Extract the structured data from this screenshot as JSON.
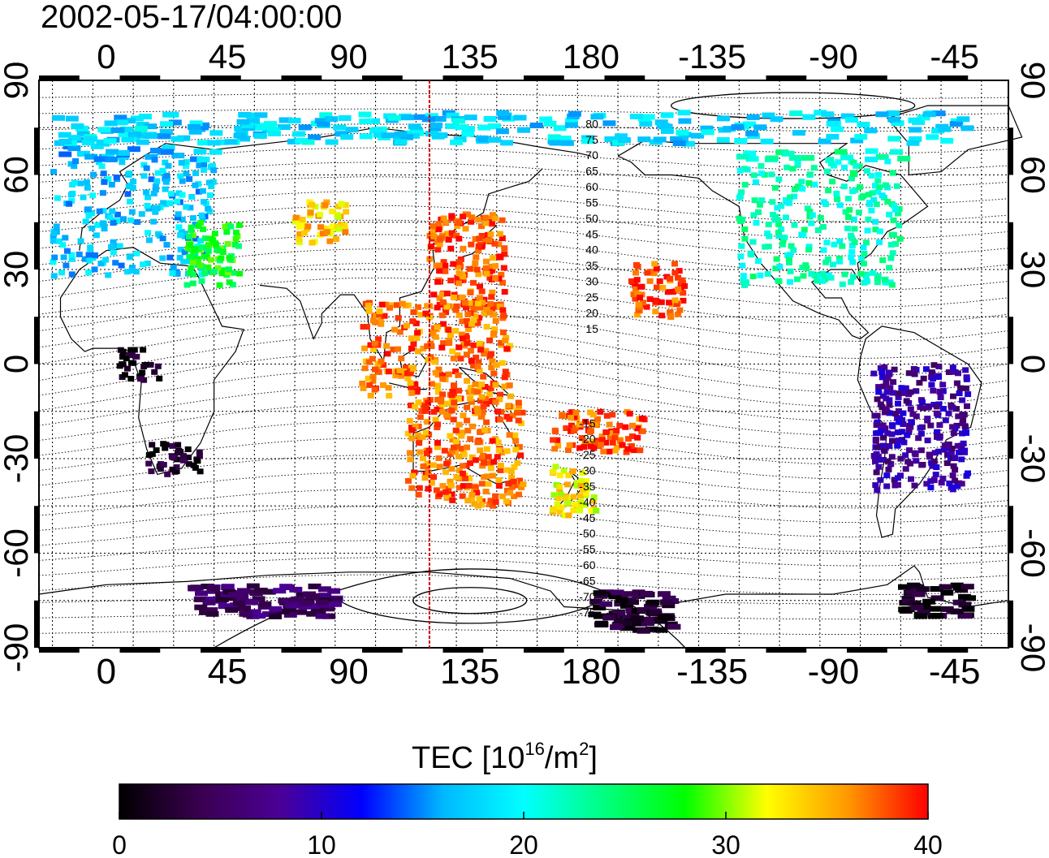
{
  "title": "2002-05-17/04:00:00",
  "top_lon_labels": [
    "0",
    "45",
    "90",
    "135",
    "180",
    "-135",
    "-90",
    "-45"
  ],
  "bottom_lon_labels": [
    "0",
    "45",
    "90",
    "135",
    "180",
    "-135",
    "-90",
    "-45"
  ],
  "left_lat_labels": [
    "90",
    "60",
    "30",
    "0",
    "-30",
    "-60",
    "-90"
  ],
  "right_lat_labels": [
    "90",
    "60",
    "30",
    "0",
    "-30",
    "-60",
    "-90"
  ],
  "lon_extent_deg": [
    -25,
    335
  ],
  "lat_extent_deg": [
    -90,
    90
  ],
  "subsolar_meridian_deg": 120,
  "contour_labels_north": [
    "80",
    "75",
    "70",
    "65",
    "60",
    "55",
    "50",
    "45",
    "40",
    "35",
    "30",
    "25",
    "20",
    "15"
  ],
  "contour_labels_south": [
    "-15",
    "-20",
    "-25",
    "-30",
    "-35",
    "-40",
    "-45",
    "-50",
    "-55",
    "-60",
    "-65",
    "-70",
    "-75"
  ],
  "colorbar": {
    "title_main": "TEC  [10",
    "title_sup1": "16",
    "title_mid": "/m",
    "title_sup2": "2",
    "title_end": "]",
    "min": 0,
    "max": 40,
    "tick_labels": [
      "0",
      "10",
      "20",
      "30",
      "40"
    ],
    "colors": [
      "#000000",
      "#3a0050",
      "#4b0096",
      "#0000ff",
      "#00b8ff",
      "#00ffff",
      "#00ff7f",
      "#00ff00",
      "#ffff00",
      "#ff9900",
      "#ff0000"
    ]
  },
  "tec_regions": [
    {
      "name": "europe",
      "lon": [
        -20,
        40
      ],
      "lat": [
        28,
        72
      ],
      "tec": 17
    },
    {
      "name": "mideast",
      "lon": [
        30,
        50
      ],
      "lat": [
        25,
        45
      ],
      "tec": 27
    },
    {
      "name": "central-asia",
      "lon": [
        70,
        90
      ],
      "lat": [
        38,
        52
      ],
      "tec": 34
    },
    {
      "name": "japan-china",
      "lon": [
        120,
        148
      ],
      "lat": [
        18,
        48
      ],
      "tec": 38
    },
    {
      "name": "indonesia",
      "lon": [
        95,
        150
      ],
      "lat": [
        -10,
        20
      ],
      "tec": 37
    },
    {
      "name": "australia",
      "lon": [
        112,
        155
      ],
      "lat": [
        -45,
        -10
      ],
      "tec": 37
    },
    {
      "name": "pacific-north",
      "lon": [
        195,
        215
      ],
      "lat": [
        15,
        32
      ],
      "tec": 38
    },
    {
      "name": "pacific-south",
      "lon": [
        165,
        200
      ],
      "lat": [
        -28,
        -15
      ],
      "tec": 38
    },
    {
      "name": "new-zealand",
      "lon": [
        165,
        182
      ],
      "lat": [
        -48,
        -32
      ],
      "tec": 33
    },
    {
      "name": "north-america",
      "lon": [
        235,
        295
      ],
      "lat": [
        25,
        68
      ],
      "tec": 22
    },
    {
      "name": "south-america",
      "lon": [
        285,
        320
      ],
      "lat": [
        -40,
        0
      ],
      "tec": 8
    },
    {
      "name": "africa-west",
      "lon": [
        5,
        20
      ],
      "lat": [
        -5,
        5
      ],
      "tec": 1
    },
    {
      "name": "africa-south",
      "lon": [
        15,
        35
      ],
      "lat": [
        -35,
        -25
      ],
      "tec": 2
    },
    {
      "name": "antarctica-pacific",
      "lon": [
        180,
        210
      ],
      "lat": [
        -85,
        -72
      ],
      "tec": 2
    },
    {
      "name": "antarctica-atlantic",
      "lon": [
        295,
        320
      ],
      "lat": [
        -80,
        -70
      ],
      "tec": 1
    },
    {
      "name": "antarctica-indian",
      "lon": [
        30,
        85
      ],
      "lat": [
        -80,
        -70
      ],
      "tec": 5
    },
    {
      "name": "arctic-band",
      "lon": [
        -20,
        320
      ],
      "lat": [
        70,
        80
      ],
      "tec": 18
    }
  ]
}
